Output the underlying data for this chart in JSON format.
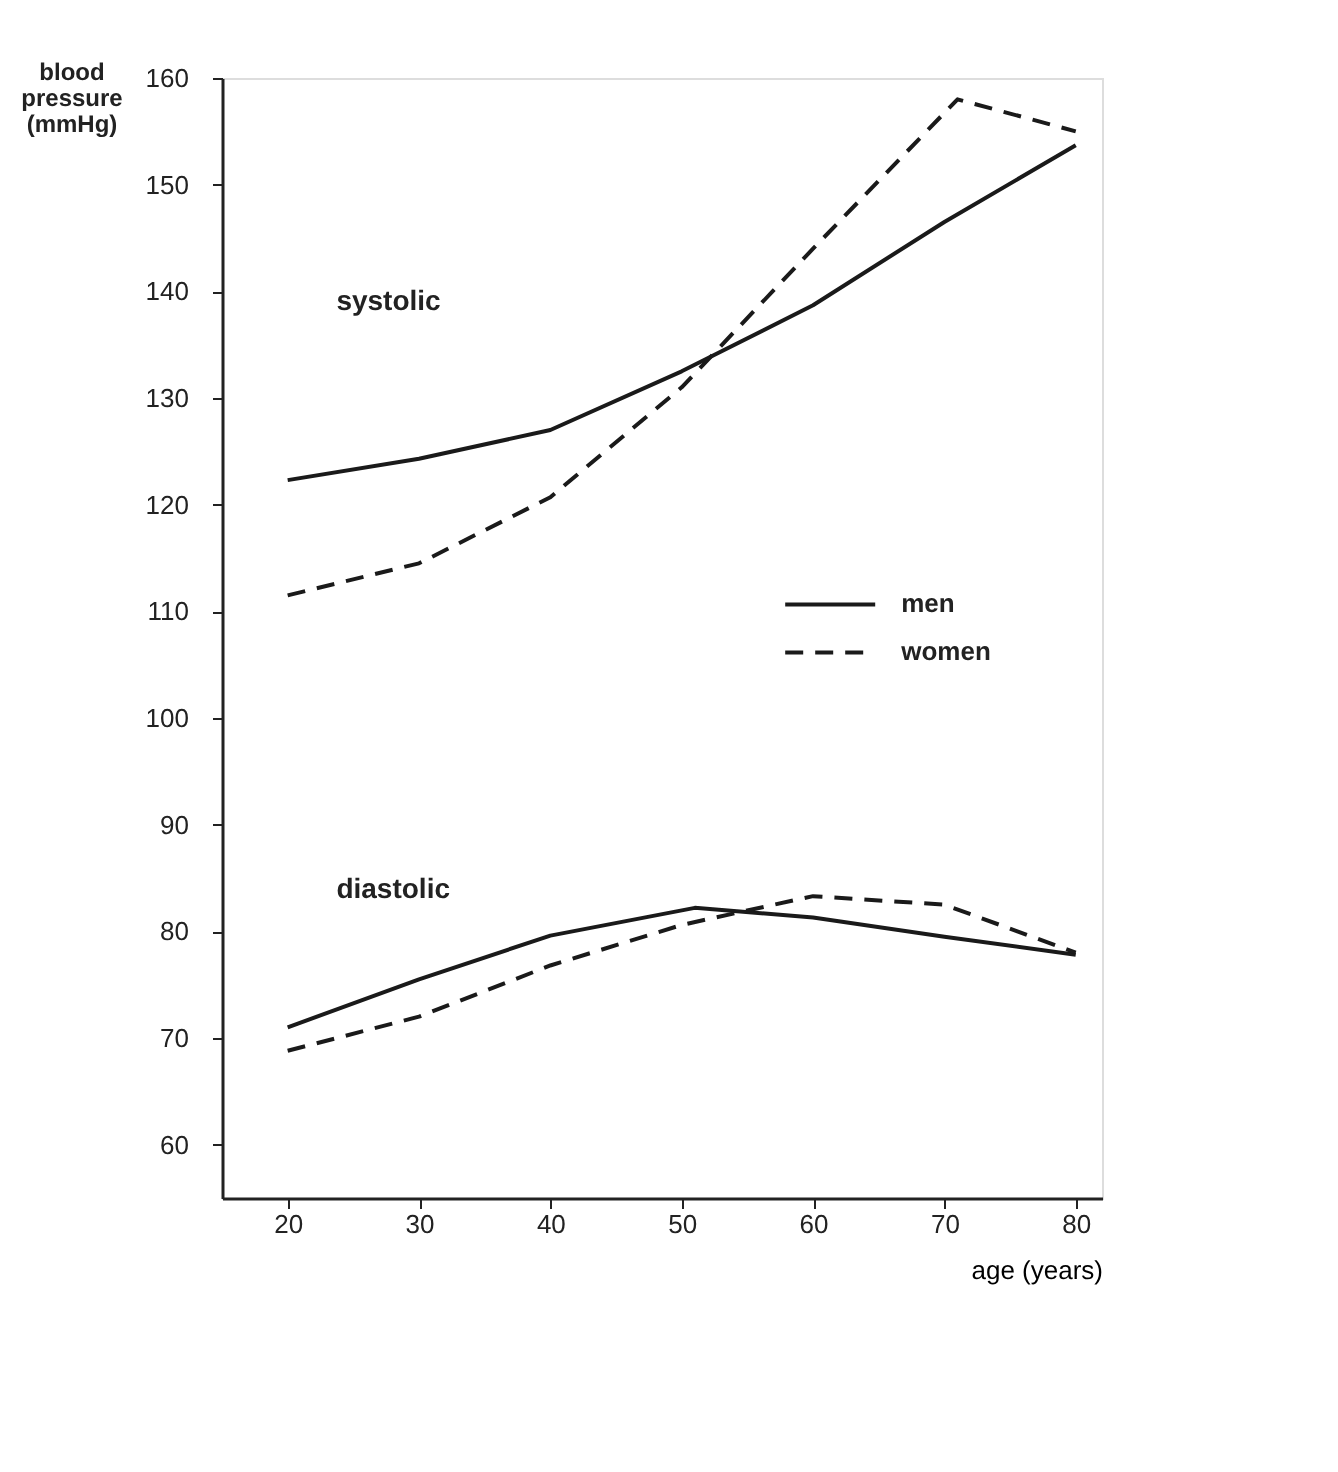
{
  "chart_data": {
    "type": "line",
    "xlabel": "age (years)",
    "ylabel": "blood pressure (mmHg)",
    "xlim": [
      15,
      82
    ],
    "xticks": [
      20,
      30,
      40,
      50,
      60,
      70,
      80
    ],
    "ylim": [
      55,
      160
    ],
    "yticks": [
      60,
      70,
      80,
      90,
      100,
      110,
      120,
      130,
      140,
      150,
      160
    ],
    "grid": false,
    "legend": "right",
    "marker": "none",
    "series": [
      {
        "name": "men",
        "color": "#1a1a1a",
        "line_style": "solid",
        "x": [
          20,
          30,
          40,
          50,
          60,
          70,
          80
        ],
        "values": [
          122.3,
          124.3,
          127,
          132.5,
          138.7,
          146.5,
          153.7
        ]
      },
      {
        "name": "women",
        "color": "#1a1a1a",
        "line_style": "dashed",
        "x": [
          20,
          30,
          40,
          50,
          60,
          71,
          80
        ],
        "values": [
          111.5,
          114.5,
          120.7,
          131,
          144,
          158,
          155
        ]
      },
      {
        "color": "#1a1a1a",
        "line_style": "solid",
        "x": [
          20,
          30,
          40,
          51,
          60,
          70,
          80
        ],
        "values": [
          71,
          75.5,
          79.6,
          82.2,
          81.3,
          79.5,
          77.8
        ]
      },
      {
        "color": "#1a1a1a",
        "line_style": "dashed",
        "x": [
          20,
          30,
          40,
          50,
          60,
          70,
          80
        ],
        "values": [
          68.8,
          72,
          76.8,
          80.6,
          83.3,
          82.5,
          78
        ]
      }
    ],
    "annotations": [
      "systolic",
      "diastolic"
    ]
  }
}
